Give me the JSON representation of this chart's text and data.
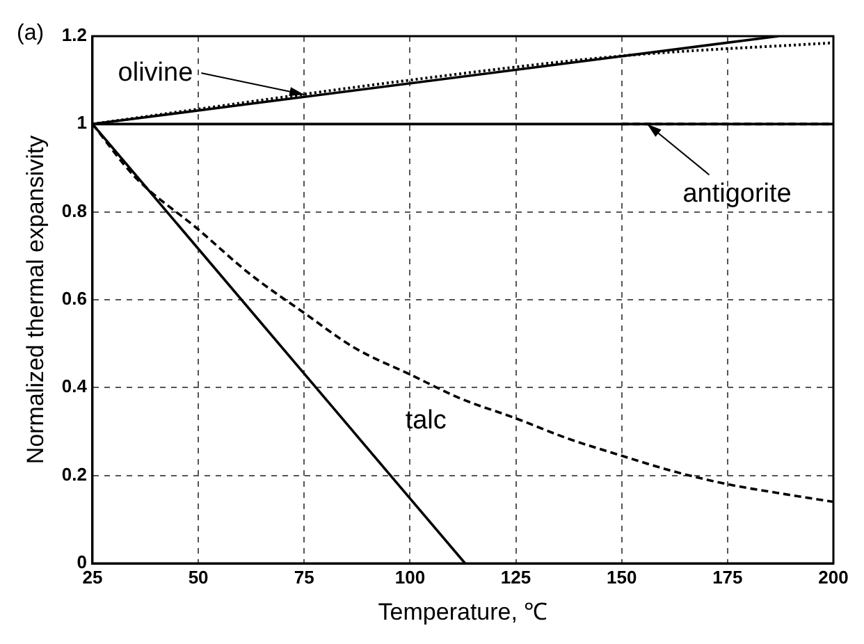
{
  "chart_data": {
    "type": "line",
    "xlabel": "Temperature, ℃",
    "ylabel": "Normalized thermal expansivity",
    "xlim": [
      25,
      200
    ],
    "xticks": [
      25,
      50,
      75,
      100,
      125,
      150,
      175,
      200
    ],
    "ylim": [
      0,
      1.2
    ],
    "yticks": [
      0,
      0.2,
      0.4,
      0.6,
      0.8,
      1,
      1.2
    ],
    "grid": true,
    "legend": false,
    "marker": "none",
    "series": [
      {
        "color": "#000000",
        "line_style": "solid",
        "x": [
          25,
          187
        ],
        "values": [
          1,
          1.2
        ]
      },
      {
        "color": "#000000",
        "line_style": "dotted",
        "x": [
          25,
          100,
          150,
          200
        ],
        "values": [
          1,
          1.1,
          1.155,
          1.185
        ]
      },
      {
        "color": "#000000",
        "line_style": "solid",
        "x": [
          25,
          200
        ],
        "values": [
          1,
          1
        ]
      },
      {
        "color": "#000000",
        "line_style": "dashed",
        "x": [
          150,
          200
        ],
        "values": [
          1,
          1
        ]
      },
      {
        "color": "#000000",
        "line_style": "solid",
        "x": [
          25,
          113
        ],
        "values": [
          1,
          0
        ]
      },
      {
        "color": "#000000",
        "line_style": "dashed",
        "x": [
          25,
          35,
          50,
          62,
          75,
          87,
          100,
          112,
          125,
          137,
          150,
          162,
          175,
          187,
          200
        ],
        "values": [
          1,
          0.88,
          0.76,
          0.66,
          0.57,
          0.49,
          0.43,
          0.375,
          0.33,
          0.285,
          0.245,
          0.21,
          0.18,
          0.16,
          0.14
        ]
      }
    ],
    "annotations": [
      "(a)",
      {
        "text": "olivine",
        "x": 75,
        "y": 1.067
      },
      {
        "text": "antigorite",
        "x": 156,
        "y": 1
      },
      "talc"
    ]
  }
}
